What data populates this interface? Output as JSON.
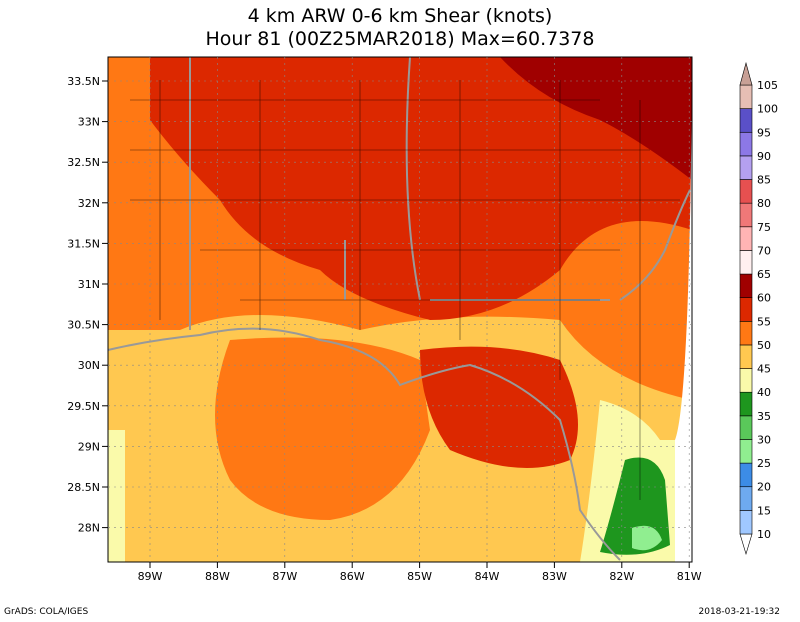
{
  "title": [
    "4 km ARW 0-6 km Shear (knots)",
    "Hour 81 (00Z25MAR2018) Max=60.7378"
  ],
  "lat_labels": [
    "33.5N",
    "33N",
    "32.5N",
    "32N",
    "31.5N",
    "31N",
    "30.5N",
    "30N",
    "29.5N",
    "29N",
    "28.5N",
    "28N"
  ],
  "lon_labels": [
    "89W",
    "88W",
    "87W",
    "86W",
    "85W",
    "84W",
    "83W",
    "82W",
    "81W"
  ],
  "colorbar": {
    "levels": [
      "10",
      "15",
      "20",
      "25",
      "30",
      "35",
      "40",
      "45",
      "50",
      "55",
      "60",
      "65",
      "70",
      "75",
      "80",
      "85",
      "90",
      "95",
      "100",
      "105"
    ],
    "colors": [
      "#ffffff",
      "#a0c8ff",
      "#6eaaf0",
      "#3c8ce6",
      "#90ee90",
      "#5ac85a",
      "#1e961e",
      "#fafaaa",
      "#ffc850",
      "#ff7814",
      "#dc2800",
      "#a00000",
      "#fff0f0",
      "#ffb4b4",
      "#f07878",
      "#e65050",
      "#b4a0f0",
      "#8c78e6",
      "#5a50c8",
      "#e6beb4",
      "#c8a096",
      "#a07864",
      "#785040"
    ]
  },
  "footer": {
    "left": "GrADS: COLA/IGES",
    "right": "2018-03-21-19:32"
  }
}
